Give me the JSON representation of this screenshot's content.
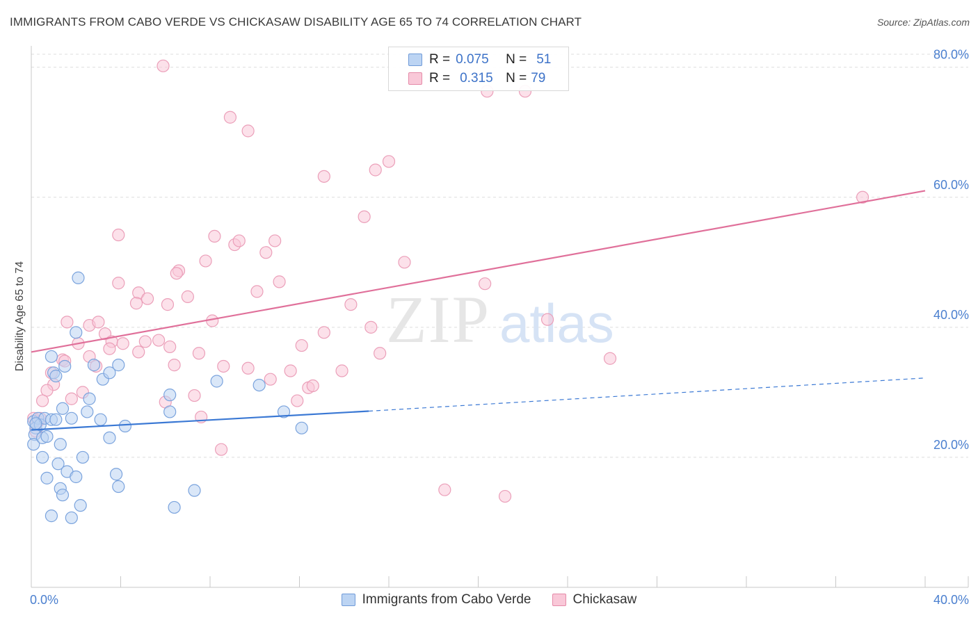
{
  "title": "IMMIGRANTS FROM CABO VERDE VS CHICKASAW DISABILITY AGE 65 TO 74 CORRELATION CHART",
  "source": "Source: ZipAtlas.com",
  "watermark": {
    "zip": "ZIP",
    "atlas": "atlas"
  },
  "legend": {
    "r_label": "R =",
    "n_label": "N =",
    "blue": {
      "r": "0.075",
      "n": "51"
    },
    "pink": {
      "r": "0.315",
      "n": "79"
    }
  },
  "colors": {
    "blue": "#3a78d4",
    "blue_fill": "#bcd4f3",
    "pink": "#e0709a",
    "pink_fill": "#f9c8d8",
    "tick": "#4a7fcf",
    "grid": "#dddddd"
  },
  "chart_data": {
    "type": "scatter",
    "title": "IMMIGRANTS FROM CABO VERDE VS CHICKASAW DISABILITY AGE 65 TO 74 CORRELATION CHART",
    "xlabel": "",
    "ylabel": "Disability Age 65 to 74",
    "xlim": [
      0,
      40
    ],
    "ylim": [
      0,
      82
    ],
    "x_tick_labels": [
      "0.0%",
      "40.0%"
    ],
    "y_ticks": [
      20,
      40,
      60,
      80
    ],
    "y_tick_labels": [
      "20.0%",
      "40.0%",
      "60.0%",
      "80.0%"
    ],
    "legend_position": "top-center",
    "series": [
      {
        "name": "Immigrants from Cabo Verde",
        "color": "#3a78d4",
        "r": 0.075,
        "n": 51,
        "trend": {
          "x0": 0,
          "y0": 24.2,
          "x1": 15.1,
          "y1": 27.1,
          "dashed_to_x": 40,
          "dashed_to_y": 32.2
        },
        "points": [
          [
            0.1,
            25.5
          ],
          [
            0.2,
            24.5
          ],
          [
            0.15,
            23.5
          ],
          [
            0.3,
            26.0
          ],
          [
            0.1,
            22.0
          ],
          [
            0.4,
            25.0
          ],
          [
            0.6,
            26.0
          ],
          [
            0.5,
            23.0
          ],
          [
            0.7,
            23.2
          ],
          [
            0.9,
            25.8
          ],
          [
            1.1,
            25.8
          ],
          [
            1.3,
            22.0
          ],
          [
            1.4,
            27.5
          ],
          [
            1.8,
            26.0
          ],
          [
            1.0,
            33.0
          ],
          [
            0.9,
            35.5
          ],
          [
            1.5,
            34.0
          ],
          [
            1.1,
            32.5
          ],
          [
            2.0,
            39.2
          ],
          [
            2.1,
            47.6
          ],
          [
            2.6,
            29.0
          ],
          [
            2.8,
            34.2
          ],
          [
            3.2,
            32.0
          ],
          [
            3.5,
            33.0
          ],
          [
            3.9,
            34.2
          ],
          [
            2.5,
            27.0
          ],
          [
            3.1,
            25.8
          ],
          [
            3.5,
            23.0
          ],
          [
            4.2,
            24.8
          ],
          [
            0.5,
            20.0
          ],
          [
            0.7,
            16.8
          ],
          [
            1.2,
            19.0
          ],
          [
            1.6,
            17.8
          ],
          [
            2.0,
            17.0
          ],
          [
            1.3,
            15.2
          ],
          [
            1.4,
            14.2
          ],
          [
            2.2,
            12.6
          ],
          [
            0.9,
            11.0
          ],
          [
            1.8,
            10.7
          ],
          [
            2.3,
            20.0
          ],
          [
            3.8,
            17.4
          ],
          [
            3.9,
            15.5
          ],
          [
            6.2,
            29.6
          ],
          [
            6.2,
            27.0
          ],
          [
            8.3,
            31.7
          ],
          [
            10.2,
            31.1
          ],
          [
            11.3,
            27.0
          ],
          [
            12.1,
            24.5
          ],
          [
            7.3,
            14.9
          ],
          [
            6.4,
            12.3
          ],
          [
            0.2,
            25.2
          ]
        ]
      },
      {
        "name": "Chickasaw",
        "color": "#e0709a",
        "r": 0.315,
        "n": 79,
        "trend": {
          "x0": 0,
          "y0": 36.2,
          "x1": 40,
          "y1": 61.0
        },
        "points": [
          [
            5.9,
            80.2
          ],
          [
            8.9,
            72.3
          ],
          [
            9.7,
            70.2
          ],
          [
            16.0,
            65.5
          ],
          [
            15.4,
            64.2
          ],
          [
            13.1,
            63.2
          ],
          [
            14.9,
            57.0
          ],
          [
            37.2,
            60.0
          ],
          [
            22.1,
            76.3
          ],
          [
            20.4,
            76.3
          ],
          [
            3.9,
            54.2
          ],
          [
            8.2,
            54.0
          ],
          [
            9.1,
            52.7
          ],
          [
            9.3,
            53.3
          ],
          [
            10.9,
            53.3
          ],
          [
            10.5,
            51.5
          ],
          [
            7.8,
            50.2
          ],
          [
            16.7,
            50.0
          ],
          [
            6.6,
            48.7
          ],
          [
            6.5,
            48.3
          ],
          [
            11.1,
            47.0
          ],
          [
            3.9,
            46.8
          ],
          [
            4.8,
            45.3
          ],
          [
            10.1,
            45.5
          ],
          [
            7.0,
            44.7
          ],
          [
            5.2,
            44.4
          ],
          [
            4.7,
            43.7
          ],
          [
            6.1,
            43.5
          ],
          [
            14.3,
            43.5
          ],
          [
            20.3,
            46.7
          ],
          [
            23.1,
            41.2
          ],
          [
            1.6,
            40.8
          ],
          [
            2.6,
            40.3
          ],
          [
            3.0,
            40.8
          ],
          [
            8.1,
            41.0
          ],
          [
            15.2,
            40.0
          ],
          [
            13.1,
            39.2
          ],
          [
            3.3,
            39.0
          ],
          [
            2.1,
            37.5
          ],
          [
            3.6,
            37.8
          ],
          [
            4.1,
            37.5
          ],
          [
            5.1,
            37.8
          ],
          [
            5.7,
            38.0
          ],
          [
            3.5,
            36.7
          ],
          [
            4.8,
            36.2
          ],
          [
            6.2,
            37.0
          ],
          [
            12.1,
            37.2
          ],
          [
            7.5,
            36.0
          ],
          [
            15.6,
            36.0
          ],
          [
            25.9,
            35.2
          ],
          [
            1.4,
            35.0
          ],
          [
            2.6,
            35.5
          ],
          [
            2.9,
            34.0
          ],
          [
            1.5,
            34.8
          ],
          [
            6.4,
            34.2
          ],
          [
            8.6,
            34.0
          ],
          [
            9.7,
            33.7
          ],
          [
            11.6,
            33.3
          ],
          [
            13.9,
            33.3
          ],
          [
            0.9,
            33.0
          ],
          [
            10.7,
            32.0
          ],
          [
            1.0,
            31.2
          ],
          [
            12.4,
            30.7
          ],
          [
            12.6,
            31.0
          ],
          [
            0.7,
            30.3
          ],
          [
            2.3,
            30.0
          ],
          [
            1.8,
            29.0
          ],
          [
            7.3,
            29.5
          ],
          [
            0.5,
            28.7
          ],
          [
            11.9,
            28.7
          ],
          [
            6.0,
            28.5
          ],
          [
            7.6,
            26.2
          ],
          [
            0.1,
            26.0
          ],
          [
            0.3,
            25.5
          ],
          [
            0.2,
            24.0
          ],
          [
            8.5,
            21.2
          ],
          [
            18.5,
            15.0
          ],
          [
            21.2,
            14.0
          ],
          [
            0.4,
            26.0
          ]
        ]
      }
    ]
  },
  "bottom_legend": {
    "blue": "Immigrants from Cabo Verde",
    "pink": "Chickasaw"
  }
}
